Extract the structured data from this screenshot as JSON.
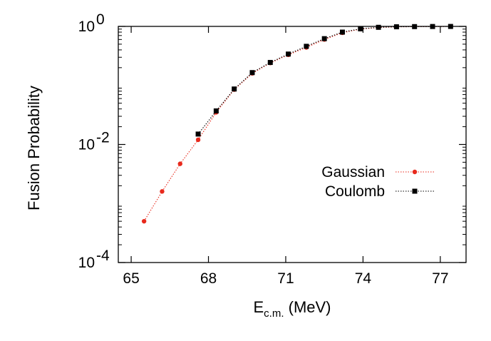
{
  "chart_data": {
    "type": "line",
    "title": "",
    "ylabel": "Fusion Probability",
    "xlabel_main": "E",
    "xlabel_sub": "c.m.",
    "xlabel_unit": "(MeV)",
    "xlim": [
      64.5,
      78.0
    ],
    "ylim": [
      0.0001,
      1
    ],
    "yscale": "log",
    "x_ticks": [
      65,
      68,
      71,
      74,
      77
    ],
    "x_tick_labels": [
      "65",
      "68",
      "71",
      "74",
      "77"
    ],
    "y_ticks": [
      0.0001,
      0.01,
      1
    ],
    "y_tick_labels": [
      {
        "base": "10",
        "exp": "-4"
      },
      {
        "base": "10",
        "exp": "-2"
      },
      {
        "base": "10",
        "exp": "0"
      }
    ],
    "grid": false,
    "legend_position": "right",
    "series": [
      {
        "name": "Gaussian",
        "color": "#e8291c",
        "marker": "circle",
        "x": [
          65.5,
          66.2,
          66.9,
          67.6,
          68.3,
          69.0,
          69.7,
          70.4,
          71.1,
          71.8,
          72.5,
          73.2,
          73.9,
          74.6,
          75.3,
          76.0,
          76.7,
          77.4
        ],
        "y": [
          0.0005,
          0.0016,
          0.0047,
          0.012,
          0.035,
          0.085,
          0.16,
          0.24,
          0.33,
          0.44,
          0.6,
          0.78,
          0.9,
          0.96,
          0.98,
          0.99,
          0.995,
          0.998
        ]
      },
      {
        "name": "Coulomb",
        "color": "#000000",
        "marker": "square",
        "x": [
          67.6,
          68.3,
          69.0,
          69.7,
          70.4,
          71.1,
          71.8,
          72.5,
          73.2,
          73.9,
          74.6,
          75.3,
          76.0,
          76.7,
          77.4
        ],
        "y": [
          0.015,
          0.037,
          0.087,
          0.165,
          0.245,
          0.34,
          0.46,
          0.62,
          0.8,
          0.91,
          0.965,
          0.985,
          0.992,
          0.996,
          0.998
        ]
      }
    ]
  }
}
